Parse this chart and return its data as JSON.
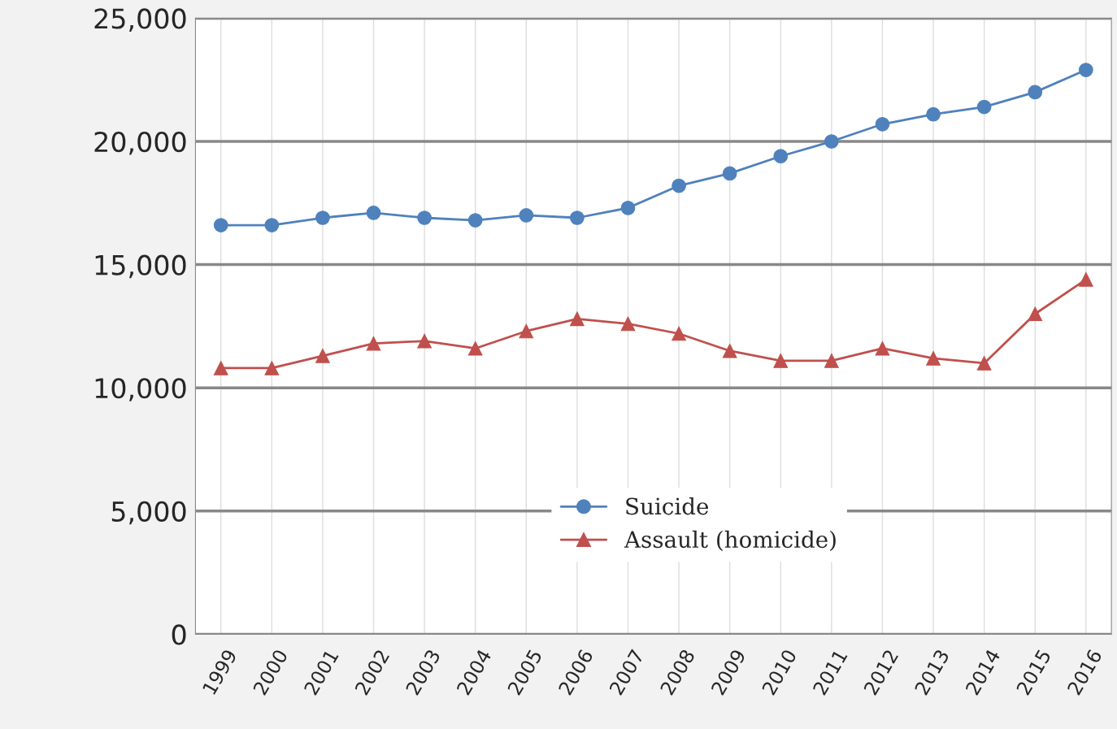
{
  "chart_data": {
    "type": "line",
    "categories": [
      "1999",
      "2000",
      "2001",
      "2002",
      "2003",
      "2004",
      "2005",
      "2006",
      "2007",
      "2008",
      "2009",
      "2010",
      "2011",
      "2012",
      "2013",
      "2014",
      "2015",
      "2016"
    ],
    "series": [
      {
        "name": "Suicide",
        "color": "#4f81bd",
        "marker": "circle",
        "values": [
          16600,
          16600,
          16900,
          17100,
          16900,
          16800,
          17000,
          16900,
          17300,
          18200,
          18700,
          19400,
          20000,
          20700,
          21100,
          21400,
          22000,
          22900
        ]
      },
      {
        "name": "Assault (homicide)",
        "color": "#c0504d",
        "marker": "triangle",
        "values": [
          10800,
          10800,
          11300,
          11800,
          11900,
          11600,
          12300,
          12800,
          12600,
          12200,
          11500,
          11100,
          11100,
          11600,
          11200,
          11000,
          13000,
          14400
        ]
      }
    ],
    "ylim": [
      0,
      25000
    ],
    "yticks": [
      {
        "value": 0,
        "label": "0"
      },
      {
        "value": 5000,
        "label": "5,000"
      },
      {
        "value": 10000,
        "label": "10,000"
      },
      {
        "value": 15000,
        "label": "15,000"
      },
      {
        "value": 20000,
        "label": "20,000"
      },
      {
        "value": 25000,
        "label": "25,000"
      }
    ],
    "grid": true,
    "legend": "bottom",
    "line_style": "solid"
  }
}
